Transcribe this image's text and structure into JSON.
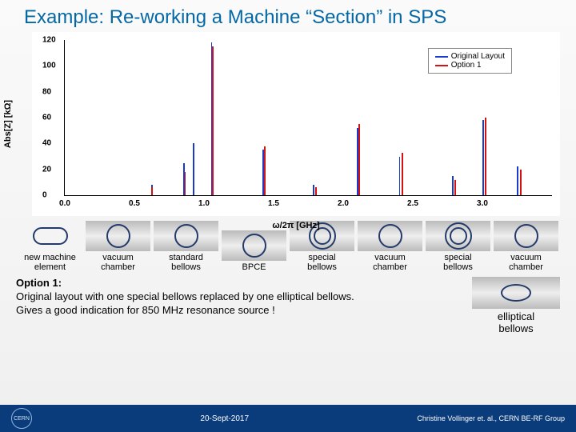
{
  "title": "Example: Re-working a Machine “Section” in SPS",
  "chart": {
    "type": "line-spectrum",
    "ylabel": "Abs[Z] [kΩ]",
    "xlabel": "ω/2π [GHz]",
    "xlim": [
      0.0,
      3.5
    ],
    "ylim": [
      0,
      120
    ],
    "yticks": [
      0,
      20,
      40,
      60,
      80,
      100,
      120
    ],
    "xticks": [
      0.0,
      0.5,
      1.0,
      1.5,
      2.0,
      2.5,
      3.0
    ],
    "background_color": "#ffffff",
    "axis_color": "#000000",
    "tick_fontsize": 10,
    "label_fontsize": 11,
    "legend": {
      "position": "upper-right",
      "items": [
        {
          "label": "Original Layout",
          "color": "#1a3acb"
        },
        {
          "label": "Option 1",
          "color": "#d41212"
        }
      ]
    },
    "series": [
      {
        "name": "Original Layout",
        "color": "#1a3acb",
        "line_width": 1.2,
        "peaks": [
          {
            "x": 0.62,
            "y": 8
          },
          {
            "x": 0.85,
            "y": 25
          },
          {
            "x": 0.92,
            "y": 40
          },
          {
            "x": 1.05,
            "y": 118
          },
          {
            "x": 1.42,
            "y": 35
          },
          {
            "x": 1.78,
            "y": 8
          },
          {
            "x": 2.1,
            "y": 52
          },
          {
            "x": 2.4,
            "y": 30
          },
          {
            "x": 2.78,
            "y": 15
          },
          {
            "x": 3.0,
            "y": 58
          },
          {
            "x": 3.25,
            "y": 22
          }
        ]
      },
      {
        "name": "Option 1",
        "color": "#d41212",
        "line_width": 1.2,
        "peaks": [
          {
            "x": 0.62,
            "y": 6
          },
          {
            "x": 0.86,
            "y": 18
          },
          {
            "x": 1.06,
            "y": 115
          },
          {
            "x": 1.43,
            "y": 38
          },
          {
            "x": 1.8,
            "y": 6
          },
          {
            "x": 2.11,
            "y": 55
          },
          {
            "x": 2.42,
            "y": 33
          },
          {
            "x": 2.8,
            "y": 12
          },
          {
            "x": 3.02,
            "y": 60
          },
          {
            "x": 3.27,
            "y": 20
          }
        ]
      }
    ]
  },
  "elements": [
    {
      "shape": "capsule",
      "label": "new machine\nelement",
      "bg": false
    },
    {
      "shape": "circle",
      "label": "vacuum\nchamber",
      "bg": true
    },
    {
      "shape": "circle",
      "label": "standard\nbellows",
      "bg": true
    },
    {
      "shape": "circle",
      "label": "BPCE",
      "bg": true
    },
    {
      "shape": "double-circle",
      "label": "special\nbellows",
      "bg": true
    },
    {
      "shape": "circle",
      "label": "vacuum\nchamber",
      "bg": true
    },
    {
      "shape": "double-circle",
      "label": "special\nbellows",
      "bg": true
    },
    {
      "shape": "circle",
      "label": "vacuum\nchamber",
      "bg": true
    }
  ],
  "option": {
    "heading": "Option 1:",
    "body": "Original layout with one special bellows replaced by one elliptical bellows.\nGives a good indication for 850 MHz resonance source !"
  },
  "elliptical": {
    "shape": "ellipse",
    "label": "elliptical\nbellows"
  },
  "footer": {
    "logo": "CERN",
    "date": "20-Sept-2017",
    "credit": "Christine Vollinger et. al., CERN BE-RF Group"
  },
  "colors": {
    "title": "#0568a6",
    "footer_bg": "#0a3b7a",
    "shape_stroke": "#233a6a"
  }
}
